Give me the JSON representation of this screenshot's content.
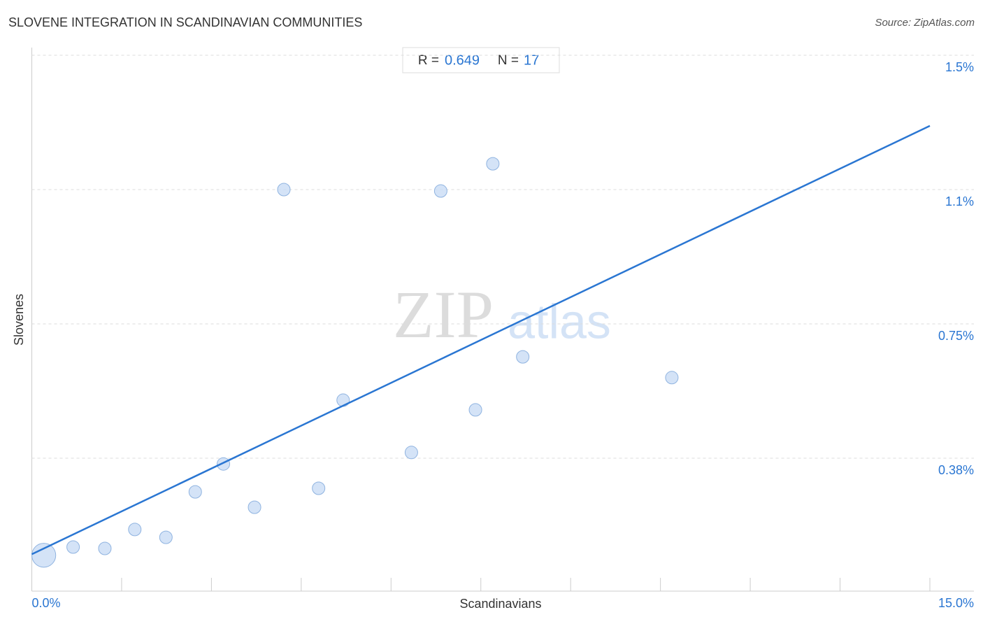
{
  "chart_data": {
    "type": "scatter",
    "title": "SLOVENE INTEGRATION IN SCANDINAVIAN COMMUNITIES",
    "source": "Source: ZipAtlas.com",
    "watermark": [
      "ZIP",
      "atlas"
    ],
    "x_label": "Scandinavians",
    "y_label": "Slovenes",
    "stats": {
      "r_label": "R =",
      "r_value": "0.649",
      "n_label": "N =",
      "n_value": "17"
    },
    "color": "#c9dcf5",
    "line_color": "#2a76d2",
    "xlim": [
      0,
      15
    ],
    "ylim": [
      0,
      1.52
    ],
    "xticks": [
      {
        "value": 0,
        "label": "0.0%"
      },
      {
        "value": 15,
        "label": "15.0%"
      }
    ],
    "yticks": [
      {
        "value": 0.375,
        "label": "0.38%"
      },
      {
        "value": 0.75,
        "label": "0.75%"
      },
      {
        "value": 1.125,
        "label": "1.1%"
      },
      {
        "value": 1.5,
        "label": "1.5%"
      }
    ],
    "grid": true,
    "x": [
      0.2,
      0.69,
      1.22,
      1.72,
      2.24,
      2.73,
      3.2,
      3.72,
      4.21,
      4.79,
      5.2,
      6.34,
      6.83,
      7.41,
      7.7,
      8.2,
      10.69
    ],
    "values": [
      0.104,
      0.127,
      0.123,
      0.176,
      0.154,
      0.281,
      0.359,
      0.238,
      1.125,
      0.291,
      0.537,
      0.391,
      1.121,
      0.51,
      1.197,
      0.658,
      0.6
    ],
    "sizes": [
      3.6,
      1,
      1,
      1,
      1,
      1,
      1,
      1,
      1,
      1,
      1,
      1,
      1,
      1,
      1,
      1,
      1
    ],
    "trendline": {
      "x": [
        0,
        15
      ],
      "y": [
        0.107,
        1.303
      ]
    }
  }
}
